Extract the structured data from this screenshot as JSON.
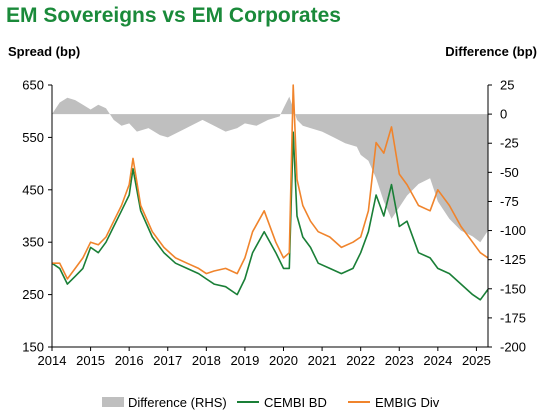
{
  "title": "EM Sovereigns vs EM Corporates",
  "chart_data": {
    "type": "line",
    "title": "EM Sovereigns vs EM Corporates",
    "ylabel_left": "Spread (bp)",
    "ylabel_right": "Difference (bp)",
    "xlim": [
      2014.0,
      2025.3
    ],
    "ylim_left": [
      150,
      650
    ],
    "ylim_right": [
      -200,
      25
    ],
    "x_ticks": [
      "2014",
      "2015",
      "2016",
      "2017",
      "2018",
      "2019",
      "2020",
      "2021",
      "2022",
      "2023",
      "2024",
      "2025"
    ],
    "y_ticks_left": [
      "150",
      "250",
      "350",
      "450",
      "550",
      "650"
    ],
    "y_ticks_right": [
      "25",
      "0",
      "-25",
      "-50",
      "-75",
      "-100",
      "-125",
      "-150",
      "-175",
      "-200"
    ],
    "series": [
      {
        "name": "Difference (RHS)",
        "type": "area",
        "color": "#bfbfbf",
        "x": [
          2014.0,
          2014.2,
          2014.4,
          2014.6,
          2014.8,
          2015.0,
          2015.2,
          2015.4,
          2015.6,
          2015.8,
          2016.0,
          2016.2,
          2016.5,
          2016.8,
          2017.0,
          2017.3,
          2017.6,
          2017.9,
          2018.2,
          2018.5,
          2018.8,
          2019.0,
          2019.3,
          2019.6,
          2019.9,
          2020.0,
          2020.15,
          2020.25,
          2020.35,
          2020.5,
          2020.7,
          2021.0,
          2021.3,
          2021.6,
          2021.9,
          2022.0,
          2022.2,
          2022.4,
          2022.6,
          2022.8,
          2023.0,
          2023.2,
          2023.5,
          2023.8,
          2024.0,
          2024.3,
          2024.6,
          2024.9,
          2025.1,
          2025.3
        ],
        "values": [
          0,
          10,
          14,
          12,
          8,
          4,
          8,
          5,
          -5,
          -10,
          -8,
          -15,
          -12,
          -18,
          -20,
          -15,
          -10,
          -5,
          -10,
          -15,
          -12,
          -8,
          -10,
          -5,
          -2,
          5,
          15,
          5,
          -5,
          -10,
          -12,
          -15,
          -20,
          -25,
          -28,
          -35,
          -40,
          -55,
          -75,
          -90,
          -80,
          -70,
          -60,
          -55,
          -75,
          -90,
          -100,
          -105,
          -110,
          -100
        ]
      },
      {
        "name": "CEMBI BD",
        "type": "line",
        "color": "#1a7f37",
        "x": [
          2014.0,
          2014.2,
          2014.4,
          2014.6,
          2014.8,
          2015.0,
          2015.2,
          2015.4,
          2015.6,
          2015.8,
          2016.0,
          2016.1,
          2016.3,
          2016.6,
          2016.9,
          2017.2,
          2017.5,
          2017.8,
          2018.0,
          2018.2,
          2018.5,
          2018.8,
          2019.0,
          2019.2,
          2019.5,
          2019.8,
          2020.0,
          2020.15,
          2020.25,
          2020.35,
          2020.5,
          2020.7,
          2020.9,
          2021.2,
          2021.5,
          2021.8,
          2022.0,
          2022.2,
          2022.4,
          2022.6,
          2022.8,
          2023.0,
          2023.2,
          2023.5,
          2023.8,
          2024.0,
          2024.3,
          2024.6,
          2024.9,
          2025.1,
          2025.3
        ],
        "values": [
          310,
          300,
          270,
          285,
          300,
          340,
          330,
          350,
          380,
          410,
          440,
          490,
          410,
          360,
          330,
          310,
          300,
          290,
          280,
          270,
          265,
          250,
          280,
          330,
          370,
          330,
          300,
          300,
          560,
          400,
          360,
          340,
          310,
          300,
          290,
          300,
          330,
          370,
          440,
          400,
          460,
          380,
          390,
          330,
          320,
          300,
          290,
          270,
          250,
          240,
          260
        ]
      },
      {
        "name": "EMBIG Div",
        "type": "line",
        "color": "#f0842c",
        "x": [
          2014.0,
          2014.2,
          2014.4,
          2014.6,
          2014.8,
          2015.0,
          2015.2,
          2015.4,
          2015.6,
          2015.8,
          2016.0,
          2016.1,
          2016.3,
          2016.6,
          2016.9,
          2017.2,
          2017.5,
          2017.8,
          2018.0,
          2018.2,
          2018.5,
          2018.8,
          2019.0,
          2019.2,
          2019.5,
          2019.8,
          2020.0,
          2020.15,
          2020.25,
          2020.35,
          2020.5,
          2020.7,
          2020.9,
          2021.2,
          2021.5,
          2021.8,
          2022.0,
          2022.2,
          2022.4,
          2022.6,
          2022.8,
          2023.0,
          2023.2,
          2023.5,
          2023.8,
          2024.0,
          2024.3,
          2024.6,
          2024.9,
          2025.1,
          2025.3
        ],
        "values": [
          310,
          310,
          280,
          300,
          320,
          350,
          345,
          360,
          390,
          420,
          460,
          510,
          420,
          370,
          340,
          320,
          310,
          300,
          290,
          295,
          300,
          290,
          320,
          370,
          410,
          350,
          320,
          330,
          650,
          470,
          420,
          390,
          370,
          360,
          340,
          350,
          360,
          410,
          540,
          520,
          570,
          480,
          460,
          420,
          410,
          450,
          420,
          380,
          350,
          330,
          320
        ]
      }
    ],
    "legend": {
      "position": "bottom",
      "entries": [
        "Difference (RHS)",
        "CEMBI BD",
        "EMBIG Div"
      ]
    }
  }
}
